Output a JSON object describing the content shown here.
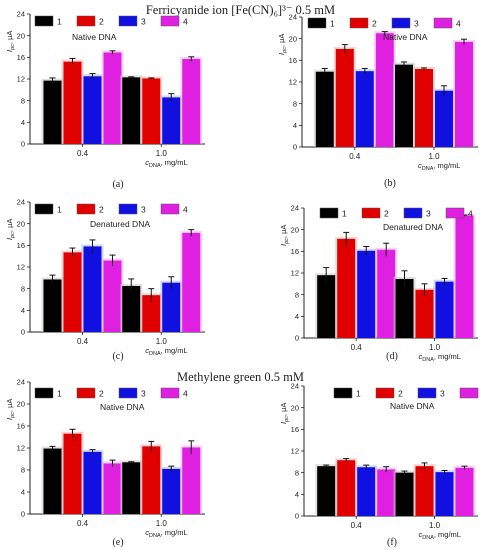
{
  "sections": [
    {
      "label": "Ferricyanide ion [Fe(CN)₆]³⁻ 0.5 mM"
    },
    {
      "label": "Methylene green 0.5 mM"
    }
  ],
  "colors": {
    "1": "#000000",
    "2": "#e00000",
    "3": "#1010e0",
    "4": "#e020e0"
  },
  "legend": [
    "1",
    "2",
    "3",
    "4"
  ],
  "chart_data": [
    {
      "type": "bar",
      "panel": "(a)",
      "annotation": "Native DNA",
      "ylabel": "I_pc, μA",
      "xlabel": "c_DNA, mg/mL",
      "categories": [
        "0.4",
        "1.0"
      ],
      "ylim": [
        0,
        24
      ],
      "yticks": [
        0,
        4,
        8,
        12,
        16,
        20,
        24
      ],
      "series": [
        {
          "name": "1",
          "values": [
            11.7,
            12.3
          ],
          "errors": [
            0.5,
            0.1
          ]
        },
        {
          "name": "2",
          "values": [
            15.2,
            12.1
          ],
          "errors": [
            0.6,
            0.1
          ]
        },
        {
          "name": "3",
          "values": [
            12.5,
            8.6
          ],
          "errors": [
            0.5,
            0.7
          ]
        },
        {
          "name": "4",
          "values": [
            16.9,
            15.7
          ],
          "errors": [
            0.3,
            0.4
          ]
        }
      ]
    },
    {
      "type": "bar",
      "panel": "(b)",
      "annotation": "Native DNA",
      "ylabel": "I_pc, μA",
      "xlabel": "c_DNA, mg/mL",
      "categories": [
        "0.4",
        "1.0"
      ],
      "ylim": [
        0,
        24
      ],
      "yticks": [
        0,
        4,
        8,
        12,
        16,
        20,
        24
      ],
      "series": [
        {
          "name": "1",
          "values": [
            13.9,
            15.2
          ],
          "errors": [
            0.6,
            0.5
          ]
        },
        {
          "name": "2",
          "values": [
            18.1,
            14.4
          ],
          "errors": [
            0.8,
            0.2
          ]
        },
        {
          "name": "3",
          "values": [
            14.0,
            10.4
          ],
          "errors": [
            0.5,
            0.9
          ]
        },
        {
          "name": "4",
          "values": [
            21.0,
            19.4
          ],
          "errors": [
            0.3,
            0.5
          ]
        }
      ]
    },
    {
      "type": "bar",
      "panel": "(c)",
      "annotation": "Denatured DNA",
      "ylabel": "I_pc, μA",
      "xlabel": "c_DNA, mg/mL",
      "categories": [
        "0.4",
        "1.0"
      ],
      "ylim": [
        0,
        24
      ],
      "yticks": [
        0,
        4,
        8,
        12,
        16,
        20,
        24
      ],
      "series": [
        {
          "name": "1",
          "values": [
            9.7,
            8.5
          ],
          "errors": [
            0.8,
            1.3
          ]
        },
        {
          "name": "2",
          "values": [
            14.7,
            6.8
          ],
          "errors": [
            0.8,
            1.2
          ]
        },
        {
          "name": "3",
          "values": [
            15.8,
            9.1
          ],
          "errors": [
            1.2,
            1.1
          ]
        },
        {
          "name": "4",
          "values": [
            13.2,
            18.3
          ],
          "errors": [
            1.0,
            0.6
          ]
        }
      ]
    },
    {
      "type": "bar",
      "panel": "(d)",
      "annotation": "Denatured DNA",
      "ylabel": "I_pc, μA",
      "xlabel": "c_DNA, mg/mL",
      "categories": [
        "0.4",
        "1.0"
      ],
      "ylim": [
        0,
        24
      ],
      "yticks": [
        0,
        4,
        8,
        12,
        16,
        20,
        24
      ],
      "series": [
        {
          "name": "1",
          "values": [
            11.6,
            10.9
          ],
          "errors": [
            1.4,
            1.5
          ]
        },
        {
          "name": "2",
          "values": [
            18.3,
            8.9
          ],
          "errors": [
            1.2,
            1.1
          ]
        },
        {
          "name": "3",
          "values": [
            16.1,
            10.4
          ],
          "errors": [
            0.8,
            0.6
          ]
        },
        {
          "name": "4",
          "values": [
            16.3,
            22.6
          ],
          "errors": [
            1.2,
            0.1
          ]
        }
      ]
    },
    {
      "type": "bar",
      "panel": "(e)",
      "annotation": "Native DNA",
      "ylabel": "I_pc, μA",
      "xlabel": "c_DNA, mg/mL",
      "categories": [
        "0.4",
        "1.0"
      ],
      "ylim": [
        0,
        24
      ],
      "yticks": [
        0,
        4,
        8,
        12,
        16,
        20,
        24
      ],
      "series": [
        {
          "name": "1",
          "values": [
            11.9,
            9.4
          ],
          "errors": [
            0.4,
            0.1
          ]
        },
        {
          "name": "2",
          "values": [
            14.6,
            12.3
          ],
          "errors": [
            0.8,
            0.9
          ]
        },
        {
          "name": "3",
          "values": [
            11.3,
            8.2
          ],
          "errors": [
            0.4,
            0.5
          ]
        },
        {
          "name": "4",
          "values": [
            9.2,
            12.1
          ],
          "errors": [
            0.6,
            1.2
          ]
        }
      ]
    },
    {
      "type": "bar",
      "panel": "(f)",
      "annotation": "Native DNA",
      "ylabel": "I_pc, μA",
      "xlabel": "c_DNA, mg/mL",
      "categories": [
        "0.4",
        "1.0"
      ],
      "ylim": [
        0,
        24
      ],
      "yticks": [
        0,
        4,
        8,
        12,
        16,
        20,
        24
      ],
      "series": [
        {
          "name": "1",
          "values": [
            9.2,
            8.0
          ],
          "errors": [
            0.2,
            0.3
          ]
        },
        {
          "name": "2",
          "values": [
            10.3,
            9.2
          ],
          "errors": [
            0.3,
            0.6
          ]
        },
        {
          "name": "3",
          "values": [
            9.0,
            8.1
          ],
          "errors": [
            0.4,
            0.3
          ]
        },
        {
          "name": "4",
          "values": [
            8.6,
            8.9
          ],
          "errors": [
            0.5,
            0.3
          ]
        }
      ]
    }
  ]
}
